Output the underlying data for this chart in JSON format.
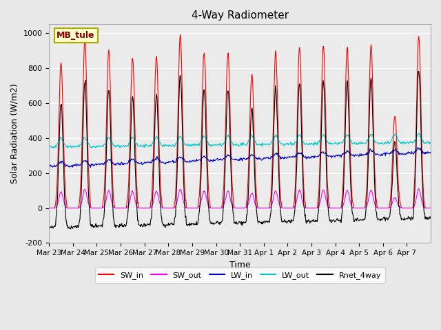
{
  "title": "4-Way Radiometer",
  "ylabel": "Solar Radiation (W/m2)",
  "xlabel": "Time",
  "ylim": [
    -200,
    1050
  ],
  "station_label": "MB_tule",
  "x_tick_labels": [
    "Mar 23",
    "Mar 24",
    "Mar 25",
    "Mar 26",
    "Mar 27",
    "Mar 28",
    "Mar 29",
    "Mar 30",
    "Mar 31",
    "Apr 1",
    "Apr 2",
    "Apr 3",
    "Apr 4",
    "Apr 5",
    "Apr 6",
    "Apr 7"
  ],
  "legend_entries": [
    {
      "label": "SW_in",
      "color": "#ff0000"
    },
    {
      "label": "SW_out",
      "color": "#ff00ff"
    },
    {
      "label": "LW_in",
      "color": "#0000cc"
    },
    {
      "label": "LW_out",
      "color": "#00cccc"
    },
    {
      "label": "Rnet_4way",
      "color": "#000000"
    }
  ],
  "bg_color": "#e8e8e8",
  "plot_bg_color": "#ebebeb",
  "day_peaks_sw": [
    830,
    960,
    900,
    860,
    870,
    990,
    900,
    895,
    770,
    890,
    920,
    925,
    915,
    930,
    530,
    1000
  ],
  "n_days": 16,
  "yticks": [
    -200,
    0,
    200,
    400,
    600,
    800,
    1000
  ]
}
